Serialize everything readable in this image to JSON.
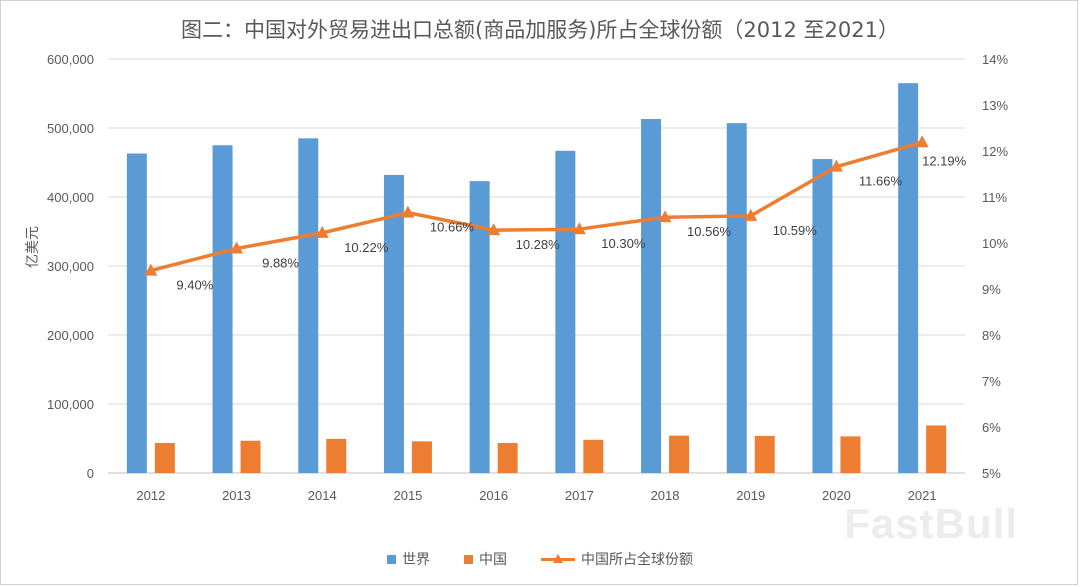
{
  "title": "图二：中国对外贸易进出口总额(商品加服务)所占全球份额（2012 至2021）",
  "watermark": "FastBull",
  "colors": {
    "world": "#5B9BD5",
    "china": "#ED7D31",
    "share": "#ED7D31",
    "grid": "#D9D9D9"
  },
  "chart_data": {
    "type": "bar",
    "categories": [
      "2012",
      "2013",
      "2014",
      "2015",
      "2016",
      "2017",
      "2018",
      "2019",
      "2020",
      "2021"
    ],
    "ylabel": "亿美元",
    "ylim": [
      0,
      600000
    ],
    "y_ticks": [
      "0",
      "100,000",
      "200,000",
      "300,000",
      "400,000",
      "500,000",
      "600,000"
    ],
    "y2lim": [
      5,
      14
    ],
    "y2_ticks": [
      "5%",
      "6%",
      "7%",
      "8%",
      "9%",
      "10%",
      "11%",
      "12%",
      "13%",
      "14%"
    ],
    "grid": true,
    "legend_position": "bottom",
    "series": [
      {
        "name": "世界",
        "type": "bar",
        "axis": "left",
        "values": [
          463000,
          475000,
          485000,
          432000,
          423000,
          467000,
          513000,
          507000,
          455000,
          565000
        ]
      },
      {
        "name": "中国",
        "type": "bar",
        "axis": "left",
        "values": [
          43500,
          46800,
          49500,
          45900,
          43500,
          48100,
          54200,
          53700,
          53100,
          68900
        ]
      },
      {
        "name": "中国所占全球份额",
        "type": "line",
        "axis": "right",
        "values": [
          9.4,
          9.88,
          10.22,
          10.66,
          10.28,
          10.3,
          10.56,
          10.59,
          11.66,
          12.19
        ],
        "labels": [
          "9.40%",
          "9.88%",
          "10.22%",
          "10.66%",
          "10.28%",
          "10.30%",
          "10.56%",
          "10.59%",
          "11.66%",
          "12.19%"
        ]
      }
    ]
  }
}
